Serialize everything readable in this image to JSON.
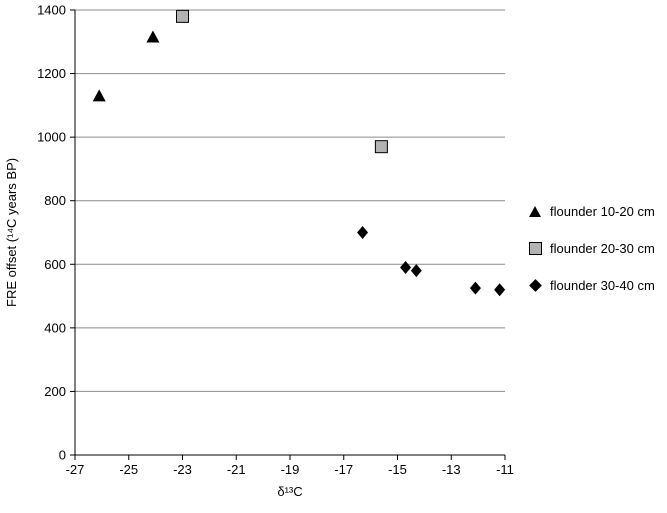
{
  "chart_data": {
    "type": "scatter",
    "title": "",
    "xlabel": "δ¹³C",
    "ylabel": "FRE offset (¹⁴C years BP)",
    "xlim": [
      -27,
      -11
    ],
    "ylim": [
      0,
      1400
    ],
    "xticks": [
      -27,
      -25,
      -23,
      -21,
      -19,
      -17,
      -15,
      -13,
      -11
    ],
    "yticks": [
      0,
      200,
      400,
      600,
      800,
      1000,
      1200,
      1400
    ],
    "grid": "horizontal",
    "gridline_color": "#8c8c8c",
    "axis_color": "#000000",
    "legend_position": "right",
    "series": [
      {
        "name": "flounder 10-20 cm",
        "marker": "triangle",
        "color": "#000000",
        "points": [
          [
            -26.1,
            1130
          ],
          [
            -24.1,
            1315
          ]
        ]
      },
      {
        "name": "flounder 20-30 cm",
        "marker": "square",
        "color": "#b3b3b3",
        "border": "#000000",
        "points": [
          [
            -23.0,
            1380
          ],
          [
            -15.6,
            970
          ]
        ]
      },
      {
        "name": "flounder 30-40 cm",
        "marker": "diamond",
        "color": "#000000",
        "points": [
          [
            -16.3,
            700
          ],
          [
            -14.7,
            590
          ],
          [
            -14.3,
            580
          ],
          [
            -12.1,
            525
          ],
          [
            -11.2,
            520
          ]
        ]
      }
    ]
  }
}
